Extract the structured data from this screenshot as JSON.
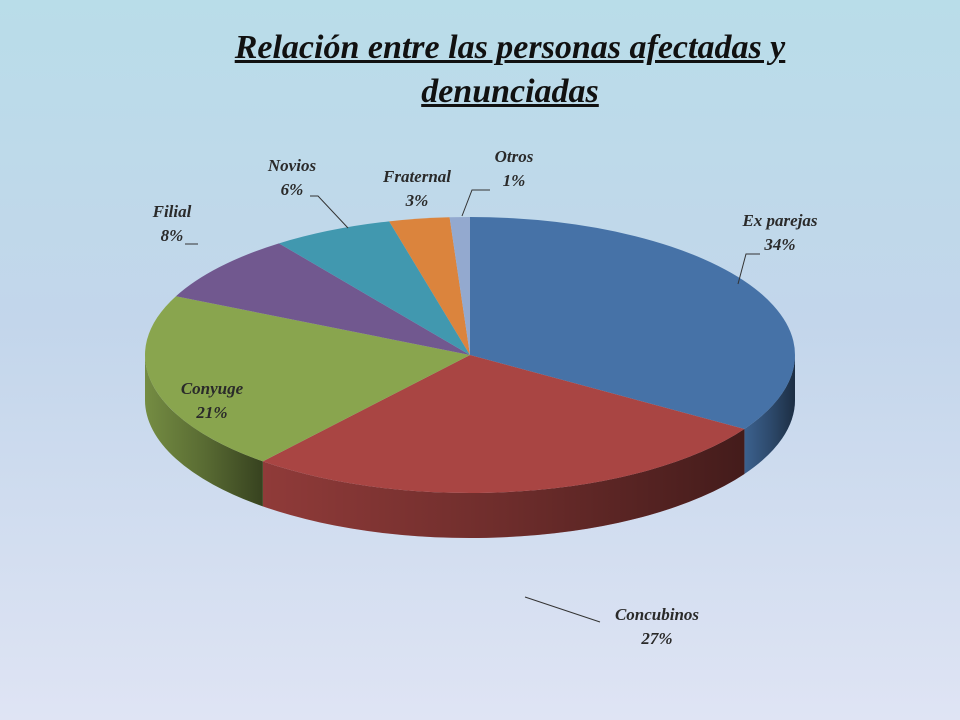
{
  "chart_data": {
    "type": "pie3d",
    "title": "Relación entre las personas afectadas y denunciadas",
    "categories": [
      "Ex parejas",
      "Concubinos",
      "Conyuge",
      "Filial",
      "Novios",
      "Fraternal",
      "Otros"
    ],
    "values": [
      34,
      27,
      21,
      8,
      6,
      3,
      1
    ],
    "value_labels": [
      "34%",
      "27%",
      "21%",
      "8%",
      "6%",
      "3%",
      "1%"
    ],
    "colors": [
      "#4672a7",
      "#a94543",
      "#89a54e",
      "#71588f",
      "#4198af",
      "#db843d",
      "#93a9cf"
    ]
  }
}
